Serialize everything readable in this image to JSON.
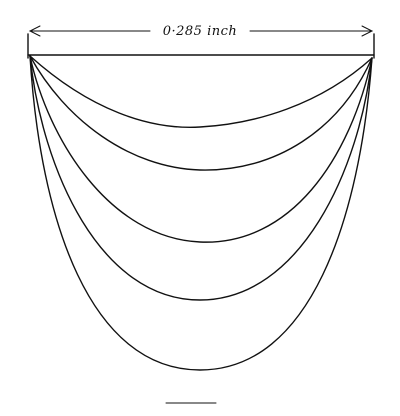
{
  "dimension": {
    "label": "0·285 inch"
  },
  "curves": [
    {
      "depth_order": 1
    },
    {
      "depth_order": 2
    },
    {
      "depth_order": 3
    },
    {
      "depth_order": 4
    },
    {
      "depth_order": 5
    }
  ],
  "colors": {
    "ink": "#111111",
    "paper": "#ffffff"
  }
}
